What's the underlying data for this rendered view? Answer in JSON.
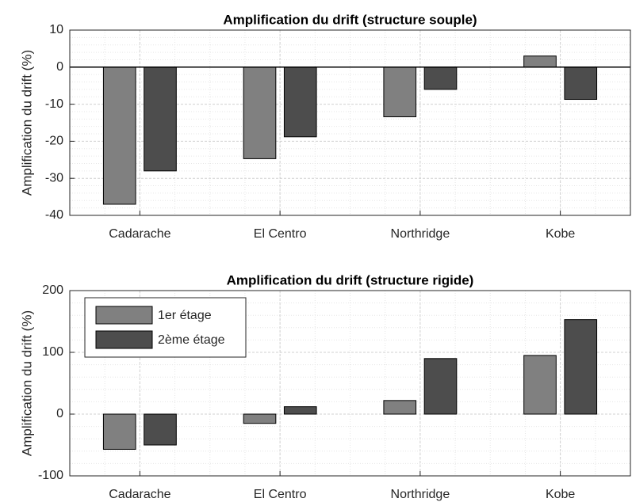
{
  "chart_data": [
    {
      "type": "bar",
      "title": "Amplification du drift (structure souple)",
      "ylabel": "Amplification du drift (%)",
      "categories": [
        "Cadarache",
        "El Centro",
        "Northridge",
        "Kobe"
      ],
      "series": [
        {
          "color": "#808080",
          "values": [
            -37,
            -24.7,
            -13.4,
            3
          ]
        },
        {
          "color": "#4d4d4d",
          "values": [
            -28,
            -18.8,
            -6,
            -8.7
          ]
        }
      ],
      "ylim": [
        -40,
        10
      ],
      "yticks": [
        -40,
        -30,
        -20,
        -10,
        0,
        10
      ],
      "grid": true,
      "zero_line": true
    },
    {
      "type": "bar",
      "title": "Amplification du drift (structure rigide)",
      "ylabel": "Amplification du drift (%)",
      "categories": [
        "Cadarache",
        "El Centro",
        "Northridge",
        "Kobe"
      ],
      "series": [
        {
          "name": "1er étage",
          "color": "#808080",
          "values": [
            -57,
            -15,
            22,
            95
          ]
        },
        {
          "name": "2ème étage",
          "color": "#4d4d4d",
          "values": [
            -50,
            12,
            90,
            153
          ]
        }
      ],
      "ylim": [
        -100,
        200
      ],
      "yticks": [
        -100,
        0,
        100,
        200
      ],
      "grid": true,
      "legend": "northwest"
    }
  ]
}
